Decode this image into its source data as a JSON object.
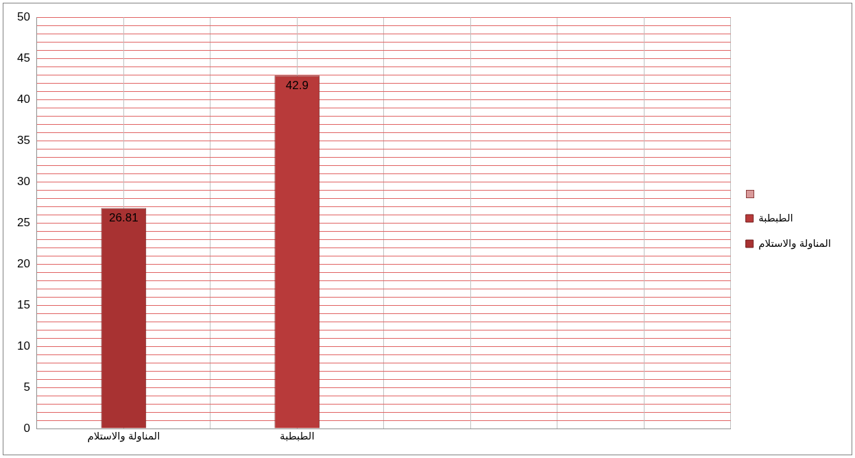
{
  "chart_data": {
    "type": "bar",
    "categories": [
      "المناولة والاستلام",
      "الطبطبة",
      null,
      null
    ],
    "series": [
      {
        "name": "المناولة والاستلام",
        "color": "#a83232",
        "values": [
          26.81,
          null,
          null,
          null
        ]
      },
      {
        "name": "الطبطبة",
        "color": "#b83a3a",
        "values": [
          null,
          42.9,
          null,
          null
        ]
      }
    ],
    "stacked": true,
    "ylim": [
      0,
      50
    ],
    "yticks": [
      0,
      {
        "value": 1,
        "label": null
      },
      {
        "value": 2,
        "label": null
      },
      {
        "value": 3,
        "label": null
      },
      {
        "value": 4,
        "label": null
      },
      5,
      {
        "value": 6,
        "label": null
      },
      {
        "value": 7,
        "label": null
      },
      {
        "value": 8,
        "label": null
      },
      {
        "value": 9,
        "label": null
      },
      10,
      {
        "value": 11,
        "label": null
      },
      {
        "value": 12,
        "label": null
      },
      {
        "value": 13,
        "label": null
      },
      {
        "value": 14,
        "label": null
      },
      15,
      {
        "value": 16,
        "label": null
      },
      {
        "value": 17,
        "label": null
      },
      {
        "value": 18,
        "label": null
      },
      {
        "value": 19,
        "label": null
      },
      20,
      {
        "value": 21,
        "label": null
      },
      {
        "value": 22,
        "label": null
      },
      {
        "value": 23,
        "label": null
      },
      {
        "value": 24,
        "label": null
      },
      25,
      {
        "value": 26,
        "label": null
      },
      {
        "value": 27,
        "label": null
      },
      {
        "value": 28,
        "label": null
      },
      {
        "value": 29,
        "label": null
      },
      30,
      {
        "value": 31,
        "label": null
      },
      {
        "value": 32,
        "label": null
      },
      {
        "value": 33,
        "label": null
      },
      {
        "value": 34,
        "label": null
      },
      35,
      {
        "value": 36,
        "label": null
      },
      {
        "value": 37,
        "label": null
      },
      {
        "value": 38,
        "label": null
      },
      {
        "value": 39,
        "label": null
      },
      40,
      {
        "value": 41,
        "label": null
      },
      {
        "value": 42,
        "label": null
      },
      {
        "value": 43,
        "label": null
      },
      {
        "value": 44,
        "label": null
      },
      45,
      {
        "value": 46,
        "label": null
      },
      {
        "value": 47,
        "label": null
      },
      {
        "value": 48,
        "label": null
      },
      {
        "value": 49,
        "label": null
      },
      50
    ],
    "grid": true,
    "legend": "right",
    "data_labels": true
  }
}
